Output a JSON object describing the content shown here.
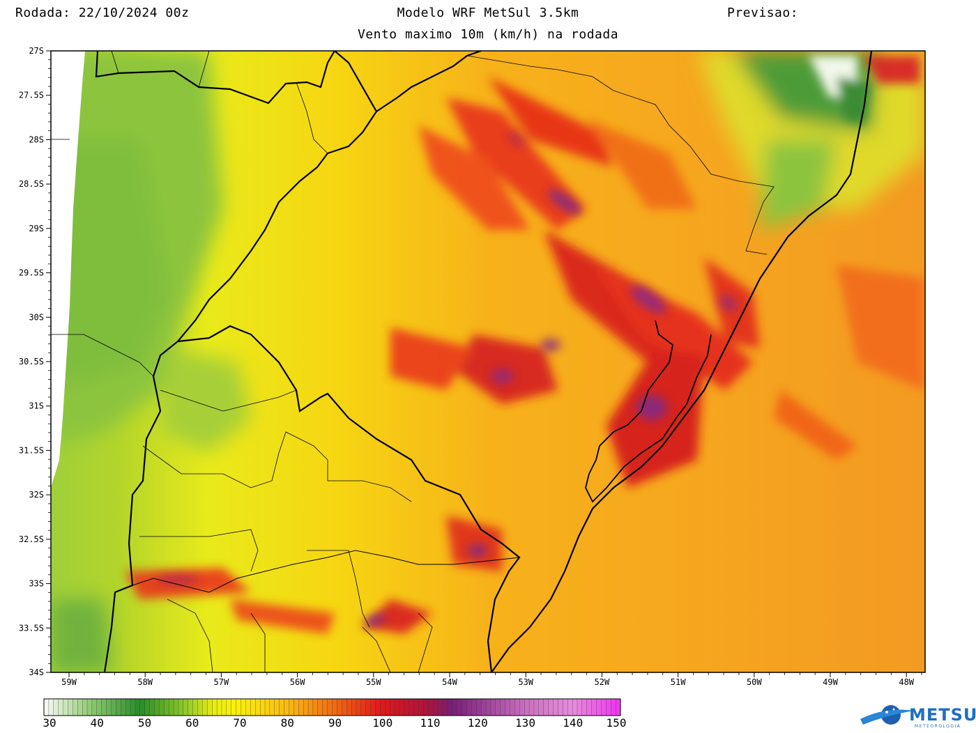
{
  "header": {
    "run_label": "Rodada: 22/10/2024 00z",
    "model_label": "Modelo WRF MetSul 3.5km",
    "forecast_label": "Previsao:",
    "subtitle": "Vento maximo 10m (km/h) na rodada"
  },
  "axes": {
    "lat_labels": [
      "27S",
      "27.5S",
      "28S",
      "28.5S",
      "29S",
      "29.5S",
      "30S",
      "30.5S",
      "31S",
      "31.5S",
      "32S",
      "32.5S",
      "33S",
      "33.5S",
      "34S"
    ],
    "lon_labels": [
      "59W",
      "58W",
      "57W",
      "56W",
      "55W",
      "54W",
      "53W",
      "52W",
      "51W",
      "50W",
      "49W",
      "48W"
    ]
  },
  "colorbar": {
    "labels": [
      "30",
      "40",
      "50",
      "60",
      "70",
      "80",
      "90",
      "100",
      "110",
      "120",
      "130",
      "140",
      "150"
    ],
    "min": 30,
    "max": 150
  },
  "logo": {
    "name": "METSUL",
    "sub": "METEOROLOGIA",
    "icon": "globe-swoosh-icon"
  }
}
